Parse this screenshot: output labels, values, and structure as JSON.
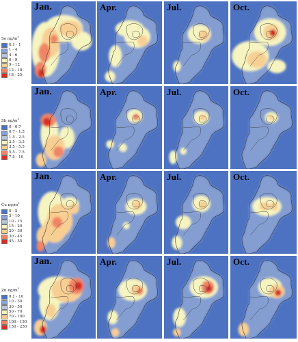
{
  "months": [
    "Jan.",
    "Apr.",
    "Jul.",
    "Oct."
  ],
  "rows": [
    {
      "element": "Se",
      "unit": "ng/m",
      "unit_exp": "3",
      "levels": [
        {
          "label": "0.1 - 1",
          "color": "#4d72c2"
        },
        {
          "label": "1 - 4",
          "color": "#8aa3d4"
        },
        {
          "label": "4 - 6",
          "color": "#b9c6d6"
        },
        {
          "label": "6 - 9",
          "color": "#f6f4c0"
        },
        {
          "label": "9 - 12",
          "color": "#f8cf93"
        },
        {
          "label": "12 - 18",
          "color": "#f08565"
        },
        {
          "label": "18 - 25",
          "color": "#d62f27"
        }
      ]
    },
    {
      "element": "Sb",
      "unit": "ng/m",
      "unit_exp": "3",
      "levels": [
        {
          "label": "0 - 0.7",
          "color": "#4d72c2"
        },
        {
          "label": "0.7 - 1.5",
          "color": "#8aa3d4"
        },
        {
          "label": "1.5 - 2.5",
          "color": "#b9c6d6"
        },
        {
          "label": "2.5 - 3.5",
          "color": "#f6f4c0"
        },
        {
          "label": "3.5 - 5.5",
          "color": "#f8cf93"
        },
        {
          "label": "5.5 - 7.5",
          "color": "#f08565"
        },
        {
          "label": "7.5 - 10",
          "color": "#d62f27"
        }
      ]
    },
    {
      "element": "Cu",
      "unit": "ng/m",
      "unit_exp": "3",
      "levels": [
        {
          "label": "0 - 5",
          "color": "#4d72c2"
        },
        {
          "label": "5 - 10",
          "color": "#8aa3d4"
        },
        {
          "label": "10 - 15",
          "color": "#b9c6d6"
        },
        {
          "label": "15 - 20",
          "color": "#f6f4c0"
        },
        {
          "label": "20 - 30",
          "color": "#f8cf93"
        },
        {
          "label": "30 - 45",
          "color": "#f08565"
        },
        {
          "label": "45 - 55",
          "color": "#d62f27"
        }
      ]
    },
    {
      "element": "Zn",
      "unit": "ng/m",
      "unit_exp": "3",
      "levels": [
        {
          "label": "0.1 - 10",
          "color": "#4d72c2"
        },
        {
          "label": "10 - 30",
          "color": "#8aa3d4"
        },
        {
          "label": "30 - 50",
          "color": "#b9c6d6"
        },
        {
          "label": "50 - 70",
          "color": "#f6f4c0"
        },
        {
          "label": "70 - 100",
          "color": "#f8cf93"
        },
        {
          "label": "100 - 150",
          "color": "#f08565"
        },
        {
          "label": "150 - 250",
          "color": "#d62f27"
        }
      ]
    }
  ]
}
